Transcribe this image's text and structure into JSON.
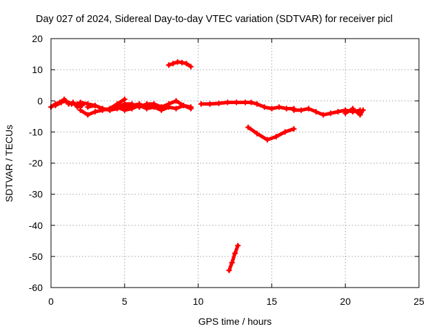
{
  "chart_data": {
    "type": "scatter",
    "title": "Day 027 of 2024, Sidereal Day-to-day VTEC variation (SDTVAR) for receiver picl",
    "xlabel": "GPS time / hours",
    "ylabel": "SDTVAR / TECUs",
    "xlim": [
      0,
      25
    ],
    "ylim": [
      -60,
      20
    ],
    "xticks": [
      0,
      5,
      10,
      15,
      20,
      25
    ],
    "yticks": [
      20,
      10,
      0,
      -10,
      -20,
      -30,
      -40,
      -50,
      -60
    ],
    "grid": true,
    "color": "#ff0000",
    "segments": [
      {
        "x": [
          0.0,
          0.3,
          0.6,
          0.9,
          1.2,
          1.5,
          1.8,
          2.1
        ],
        "y": [
          -2.0,
          -1.0,
          -0.5,
          0.5,
          -1.0,
          -0.5,
          -2.0,
          -1.5
        ]
      },
      {
        "x": [
          0.3,
          0.7,
          1.0,
          1.4,
          1.8
        ],
        "y": [
          -1.5,
          -0.5,
          0.0,
          -1.0,
          -1.0
        ]
      },
      {
        "x": [
          2.0,
          2.5,
          3.0,
          3.5,
          4.0,
          4.5,
          5.0
        ],
        "y": [
          -3.0,
          -4.5,
          -3.5,
          -3.0,
          -2.5,
          -1.0,
          0.5
        ]
      },
      {
        "x": [
          2.0,
          2.5,
          3.0,
          3.5,
          4.0,
          4.5,
          5.0,
          5.5,
          6.0,
          6.5,
          7.0,
          7.5
        ],
        "y": [
          -0.5,
          -1.0,
          -1.5,
          -2.5,
          -3.0,
          -2.0,
          -1.0,
          -1.0,
          -2.0,
          -1.0,
          -1.0,
          -2.0
        ]
      },
      {
        "x": [
          2.5,
          3.0,
          3.5,
          4.0,
          4.5,
          5.0,
          5.5,
          6.0,
          6.5,
          7.0,
          7.5,
          8.0,
          8.5,
          9.0,
          9.5
        ],
        "y": [
          -2.0,
          -1.5,
          -2.5,
          -3.0,
          -2.5,
          -2.0,
          -1.5,
          -1.0,
          -2.0,
          -1.0,
          -2.0,
          -1.0,
          0.0,
          -1.5,
          -2.5
        ]
      },
      {
        "x": [
          4.5,
          5.0,
          5.5,
          6.0,
          6.5,
          7.0,
          7.5,
          8.0,
          8.5,
          9.0,
          9.5
        ],
        "y": [
          -2.0,
          -3.0,
          -2.5,
          -1.5,
          -2.5,
          -2.0,
          -3.0,
          -2.0,
          -2.5,
          -1.5,
          -2.0
        ]
      },
      {
        "x": [
          8.0,
          8.3,
          8.6,
          8.9,
          9.2,
          9.5
        ],
        "y": [
          11.5,
          12.0,
          12.5,
          12.3,
          12.0,
          11.0
        ]
      },
      {
        "x": [
          10.2,
          10.8,
          11.4,
          12.0,
          12.6,
          13.2,
          13.6,
          14.0,
          14.5,
          15.0,
          15.5,
          16.0,
          16.5
        ],
        "y": [
          -1.0,
          -1.0,
          -0.8,
          -0.5,
          -0.5,
          -0.5,
          -0.5,
          -1.0,
          -2.0,
          -2.5,
          -2.0,
          -2.5,
          -2.5
        ]
      },
      {
        "x": [
          16.5,
          17.0,
          17.5,
          18.0,
          18.5,
          19.0,
          19.5,
          20.0,
          20.5,
          21.0
        ],
        "y": [
          -3.0,
          -3.0,
          -2.5,
          -3.5,
          -4.5,
          -4.0,
          -3.5,
          -3.0,
          -3.5,
          -3.0
        ]
      },
      {
        "x": [
          20.0,
          20.5,
          21.0,
          21.2
        ],
        "y": [
          -4.0,
          -2.5,
          -4.5,
          -3.0
        ]
      },
      {
        "x": [
          13.4,
          14.0,
          14.7,
          15.3,
          15.9,
          16.5
        ],
        "y": [
          -8.5,
          -10.5,
          -12.5,
          -11.5,
          -10.0,
          -9.0
        ]
      },
      {
        "x": [
          12.1,
          12.3,
          12.5,
          12.7
        ],
        "y": [
          -54.5,
          -52.0,
          -49.0,
          -46.5
        ]
      }
    ]
  }
}
